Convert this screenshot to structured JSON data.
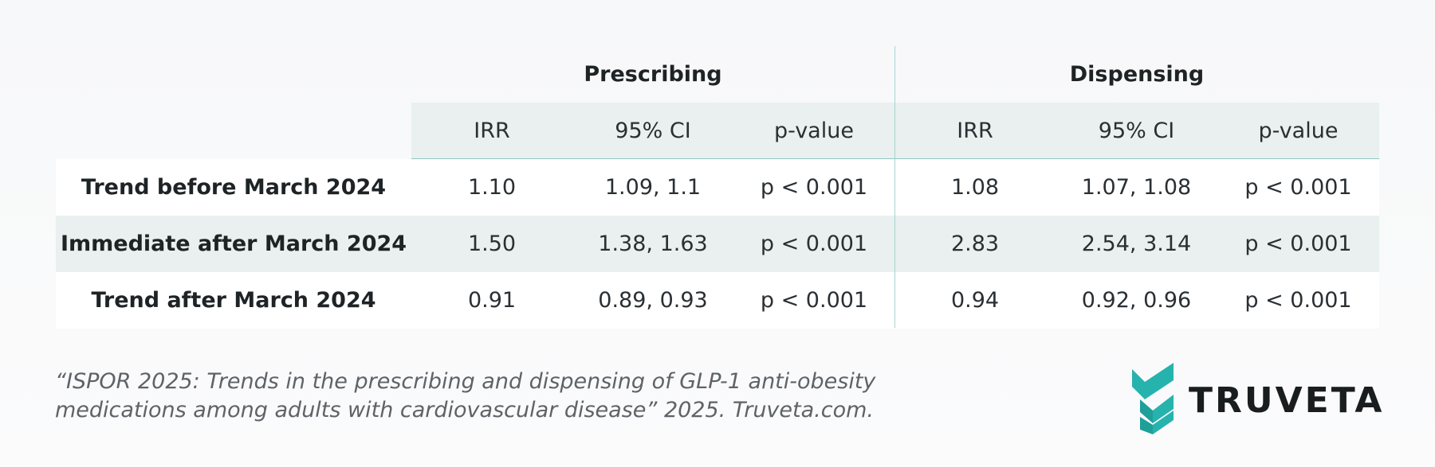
{
  "chart_data": {
    "type": "table",
    "groups": [
      "Prescribing",
      "Dispensing"
    ],
    "columns": [
      "IRR",
      "95% CI",
      "p-value",
      "IRR",
      "95% CI",
      "p-value"
    ],
    "rows": [
      {
        "label": "Trend before March 2024",
        "cells": [
          "1.10",
          "1.09, 1.1",
          "p < 0.001",
          "1.08",
          "1.07, 1.08",
          "p < 0.001"
        ]
      },
      {
        "label": "Immediate after March 2024",
        "cells": [
          "1.50",
          "1.38, 1.63",
          "p < 0.001",
          "2.83",
          "2.54, 3.14",
          "p < 0.001"
        ]
      },
      {
        "label": "Trend after March 2024",
        "cells": [
          "0.91",
          "0.89, 0.93",
          "p < 0.001",
          "0.94",
          "0.92, 0.96",
          "p < 0.001"
        ]
      }
    ]
  },
  "citation": {
    "line1": "“ISPOR 2025: Trends in the prescribing and dispensing of GLP-1 anti-obesity",
    "line2": "medications among adults with cardiovascular disease” 2025. Truveta.com."
  },
  "logo": {
    "text": "TRUVETA",
    "icon": "truveta-chevron-icon",
    "color": "#26b3ad"
  },
  "colors": {
    "band": "#e9f0ef",
    "divider": "#a8d3cf",
    "text": "#2a2f33"
  }
}
